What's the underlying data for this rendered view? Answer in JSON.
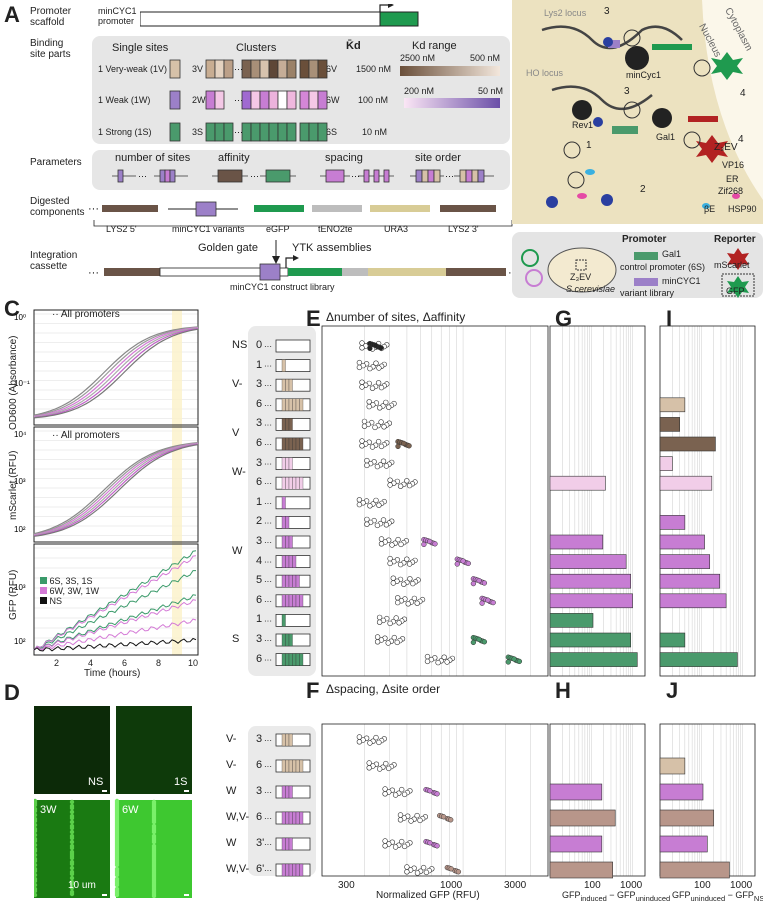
{
  "panels": {
    "A": "A",
    "B": "B",
    "C": "C",
    "D": "D",
    "E": "E",
    "F": "F",
    "G": "G",
    "H": "H",
    "I": "I",
    "J": "J"
  },
  "panelA": {
    "promoter_scaffold": "Promoter\nscaffold",
    "minCYC1": "minCYC1\npromoter",
    "binding_site_parts": "Binding\nsite parts",
    "single_sites": "Single sites",
    "clusters": "Clusters",
    "kd_bar": "K̄d",
    "kd_range": "Kd range",
    "rows": [
      {
        "single": "1 Very-weak (1V)",
        "c1": "3V",
        "c2": "6V",
        "kd": "1500 nM",
        "range_lo": "2500 nM",
        "range_hi": "500 nM"
      },
      {
        "single": "1 Weak (1W)",
        "c1": "2W",
        "c2": "6W",
        "kd": "100 nM",
        "range_lo": "200 nM",
        "range_hi": "50 nM"
      },
      {
        "single": "1 Strong (1S)",
        "c1": "3S",
        "c2": "6S",
        "kd": "10 nM"
      }
    ],
    "parameters": "Parameters",
    "param_labels": [
      "number of sites",
      "affinity",
      "spacing",
      "site order"
    ],
    "digested": "Digested\ncomponents",
    "components": [
      "LYS2 5'",
      "minCYC1 variants",
      "eGFP",
      "tENO2te",
      "URA3",
      "LYS2 3'"
    ],
    "golden_gate": "Golden gate",
    "ytk": "YTK assemblies",
    "integration": "Integration\ncassette",
    "library": "minCYC1 construct library"
  },
  "panelB": {
    "lys2": "Lys2 locus",
    "ho": "HO locus",
    "nucleus": "Nucleus",
    "cytoplasm": "Cytoplasm",
    "mincyc1": "minCyc1",
    "rev1": "Rev1",
    "gal1": "Gal1",
    "z3ev": "Z₃EV",
    "z3ev_parts": [
      "VP16",
      "ER",
      "Zif268"
    ],
    "be": "βE",
    "hsp90": "HSP90",
    "numbers": [
      "1",
      "2",
      "3",
      "3",
      "4",
      "4"
    ],
    "promoter": "Promoter",
    "reporter": "Reporter",
    "gal1_ctrl": "Gal1",
    "control_promoter": "control promoter (6S)",
    "mincyc1_lbl": "minCYC1",
    "variant_library": "variant library",
    "mscarlet": "mScarlet",
    "gfp": "GFP",
    "scerevisiae": "S.cerevisiae"
  },
  "panelC": {
    "top_legend": "All promoters",
    "mid_legend": "All promoters",
    "y1": "OD600 (Absorbance)",
    "y2": "mScarlet (RFU)",
    "y3": "GFP (RFU)",
    "xlabel": "Time (hours)",
    "xticks": [
      "2",
      "4",
      "6",
      "8",
      "10"
    ],
    "legend": [
      "6S, 3S, 1S",
      "6W, 3W, 1W",
      "NS"
    ],
    "legend_colors": [
      "#3a9a6a",
      "#d47ad6",
      "#111111"
    ]
  },
  "panelD": {
    "labels": [
      "NS",
      "1S",
      "3W",
      "6W"
    ],
    "scale": "10 um"
  },
  "panelE": {
    "title": "Δnumber of sites, Δaffinity",
    "groups": [
      {
        "label": "NS",
        "rows": [
          "0"
        ]
      },
      {
        "label": "V-",
        "rows": [
          "1",
          "3",
          "6"
        ]
      },
      {
        "label": "V",
        "rows": [
          "3",
          "6"
        ]
      },
      {
        "label": "W-",
        "rows": [
          "3",
          "6"
        ]
      },
      {
        "label": "W",
        "rows": [
          "1",
          "2",
          "3",
          "4",
          "5",
          "6"
        ]
      },
      {
        "label": "S",
        "rows": [
          "1",
          "3",
          "6"
        ]
      }
    ]
  },
  "panelF": {
    "title": "Δspacing, Δsite order",
    "groups": [
      {
        "label": "V-",
        "rows": [
          "3",
          "6"
        ]
      },
      {
        "label": "W",
        "rows": [
          "3"
        ]
      },
      {
        "label": "W,V-",
        "rows": [
          "6"
        ]
      },
      {
        "label": "W",
        "rows": [
          "3'"
        ]
      },
      {
        "label": "W,V-",
        "rows": [
          "6'"
        ]
      }
    ],
    "xlabel": "Normalized GFP (RFU)",
    "xticks": [
      "300",
      "1000",
      "3000"
    ]
  },
  "panelH": {
    "xticks": [
      "100",
      "1000"
    ],
    "xlabel": "GFP",
    "sub1": "induced",
    "sub2": " − GFP",
    "sub3": "uninduced"
  },
  "panelJ": {
    "xticks": [
      "100",
      "1000"
    ],
    "xlabel": "GFP",
    "sub1": "uninduced",
    "sub2": " − GFP",
    "sub3": "NS"
  },
  "colors": {
    "V-": "#d6c1a8",
    "V": "#7a6250",
    "W-": "#f1cde8",
    "W": "#c77dd3",
    "S": "#4a9a6c",
    "WV": "#b8968a"
  },
  "chart_data": [
    {
      "type": "scatter",
      "title": "Δnumber of sites, Δaffinity",
      "categories": [
        "NS 0",
        "V- 1",
        "V- 3",
        "V- 6",
        "V 3",
        "V 6",
        "W- 3",
        "W- 6",
        "W 1",
        "W 2",
        "W 3",
        "W 4",
        "W 5",
        "W 6",
        "S 1",
        "S 3",
        "S 6"
      ],
      "uninduced": [
        240,
        230,
        240,
        270,
        250,
        240,
        260,
        380,
        230,
        260,
        330,
        380,
        400,
        430,
        320,
        310,
        700
      ],
      "induced": [
        240,
        230,
        240,
        270,
        260,
        380,
        260,
        380,
        240,
        270,
        580,
        1000,
        1300,
        1500,
        370,
        1300,
        2300
      ],
      "xscale": "log",
      "xlim": [
        100,
        4000
      ]
    },
    {
      "type": "bar",
      "name": "G",
      "categories": [
        "NS 0",
        "V- 1",
        "V- 3",
        "V- 6",
        "V 3",
        "V 6",
        "W- 3",
        "W- 6",
        "W 1",
        "W 2",
        "W 3",
        "W 4",
        "W 5",
        "W 6",
        "S 1",
        "S 3",
        "S 6"
      ],
      "values": [
        0,
        0,
        0,
        0,
        0,
        0,
        0,
        220,
        0,
        0,
        190,
        700,
        900,
        1000,
        110,
        900,
        1300
      ],
      "xscale": "log"
    },
    {
      "type": "bar",
      "name": "I",
      "categories": [
        "NS 0",
        "V- 1",
        "V- 3",
        "V- 6",
        "V 3",
        "V 6",
        "W- 3",
        "W- 6",
        "W 1",
        "W 2",
        "W 3",
        "W 4",
        "W 5",
        "W 6",
        "S 1",
        "S 3",
        "S 6"
      ],
      "values": [
        0,
        0,
        0,
        40,
        30,
        220,
        20,
        180,
        0,
        40,
        120,
        160,
        280,
        400,
        0,
        40,
        750
      ],
      "xscale": "log"
    },
    {
      "type": "scatter",
      "title": "Δspacing, Δsite order",
      "categories": [
        "V- 3",
        "V- 6",
        "W 3",
        "W,V- 6",
        "W 3'",
        "W,V- 6'"
      ],
      "uninduced": [
        230,
        270,
        350,
        450,
        350,
        500
      ],
      "induced": [
        230,
        270,
        600,
        750,
        600,
        850
      ],
      "xscale": "log"
    },
    {
      "type": "bar",
      "name": "H",
      "categories": [
        "V- 3",
        "V- 6",
        "W 3",
        "W,V- 6",
        "W 3'",
        "W,V- 6'"
      ],
      "values": [
        0,
        0,
        180,
        380,
        180,
        330
      ],
      "xscale": "log"
    },
    {
      "type": "bar",
      "name": "J",
      "categories": [
        "V- 3",
        "V- 6",
        "W 3",
        "W,V- 6",
        "W 3'",
        "W,V- 6'"
      ],
      "values": [
        0,
        40,
        110,
        200,
        140,
        480
      ],
      "xscale": "log"
    }
  ]
}
